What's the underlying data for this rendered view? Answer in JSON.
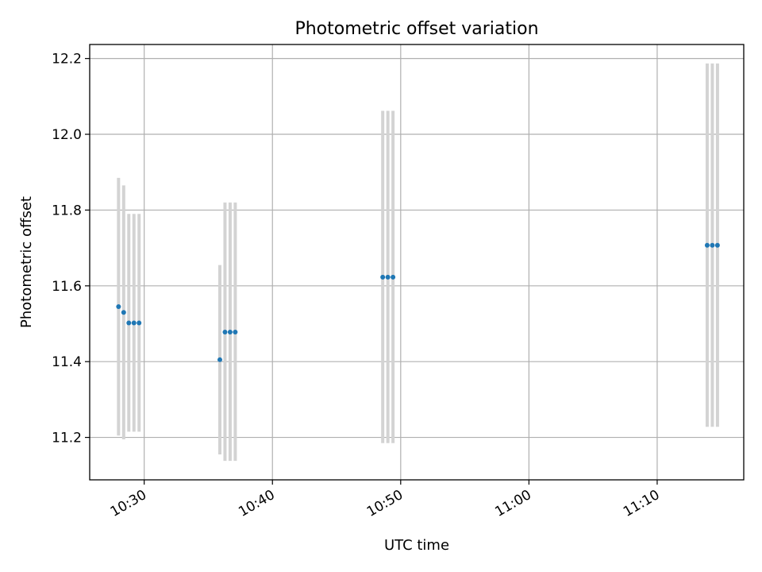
{
  "chart_data": {
    "type": "scatter",
    "title": "Photometric offset variation",
    "xlabel": "UTC time",
    "ylabel": "Photometric offset",
    "x_ticks": [
      "10:30",
      "10:40",
      "10:50",
      "11:00",
      "11:10"
    ],
    "y_ticks": [
      "11.2",
      "11.4",
      "11.6",
      "11.8",
      "12.0",
      "12.2"
    ],
    "xlim": [
      "10:25:45",
      "11:16:45"
    ],
    "ylim": [
      11.088,
      12.237
    ],
    "grid": true,
    "colors": {
      "points": "#1f77b4",
      "errorbars": "#d3d3d3",
      "grid": "#b0b0b0"
    },
    "points": [
      {
        "time": "10:28:00",
        "y": 11.545,
        "ymin": 11.205,
        "ymax": 11.885
      },
      {
        "time": "10:28:24",
        "y": 11.53,
        "ymin": 11.195,
        "ymax": 11.865
      },
      {
        "time": "10:28:48",
        "y": 11.502,
        "ymin": 11.215,
        "ymax": 11.79
      },
      {
        "time": "10:29:12",
        "y": 11.502,
        "ymin": 11.215,
        "ymax": 11.79
      },
      {
        "time": "10:29:36",
        "y": 11.502,
        "ymin": 11.215,
        "ymax": 11.79
      },
      {
        "time": "10:35:54",
        "y": 11.405,
        "ymin": 11.155,
        "ymax": 11.655
      },
      {
        "time": "10:36:18",
        "y": 11.478,
        "ymin": 11.138,
        "ymax": 11.82
      },
      {
        "time": "10:36:42",
        "y": 11.478,
        "ymin": 11.138,
        "ymax": 11.82
      },
      {
        "time": "10:37:06",
        "y": 11.478,
        "ymin": 11.138,
        "ymax": 11.82
      },
      {
        "time": "10:48:36",
        "y": 11.623,
        "ymin": 11.185,
        "ymax": 12.062
      },
      {
        "time": "10:49:00",
        "y": 11.623,
        "ymin": 11.185,
        "ymax": 12.062
      },
      {
        "time": "10:49:24",
        "y": 11.623,
        "ymin": 11.185,
        "ymax": 12.062
      },
      {
        "time": "11:13:54",
        "y": 11.707,
        "ymin": 11.228,
        "ymax": 12.187
      },
      {
        "time": "11:14:18",
        "y": 11.707,
        "ymin": 11.228,
        "ymax": 12.187
      },
      {
        "time": "11:14:42",
        "y": 11.707,
        "ymin": 11.228,
        "ymax": 12.187
      }
    ]
  }
}
